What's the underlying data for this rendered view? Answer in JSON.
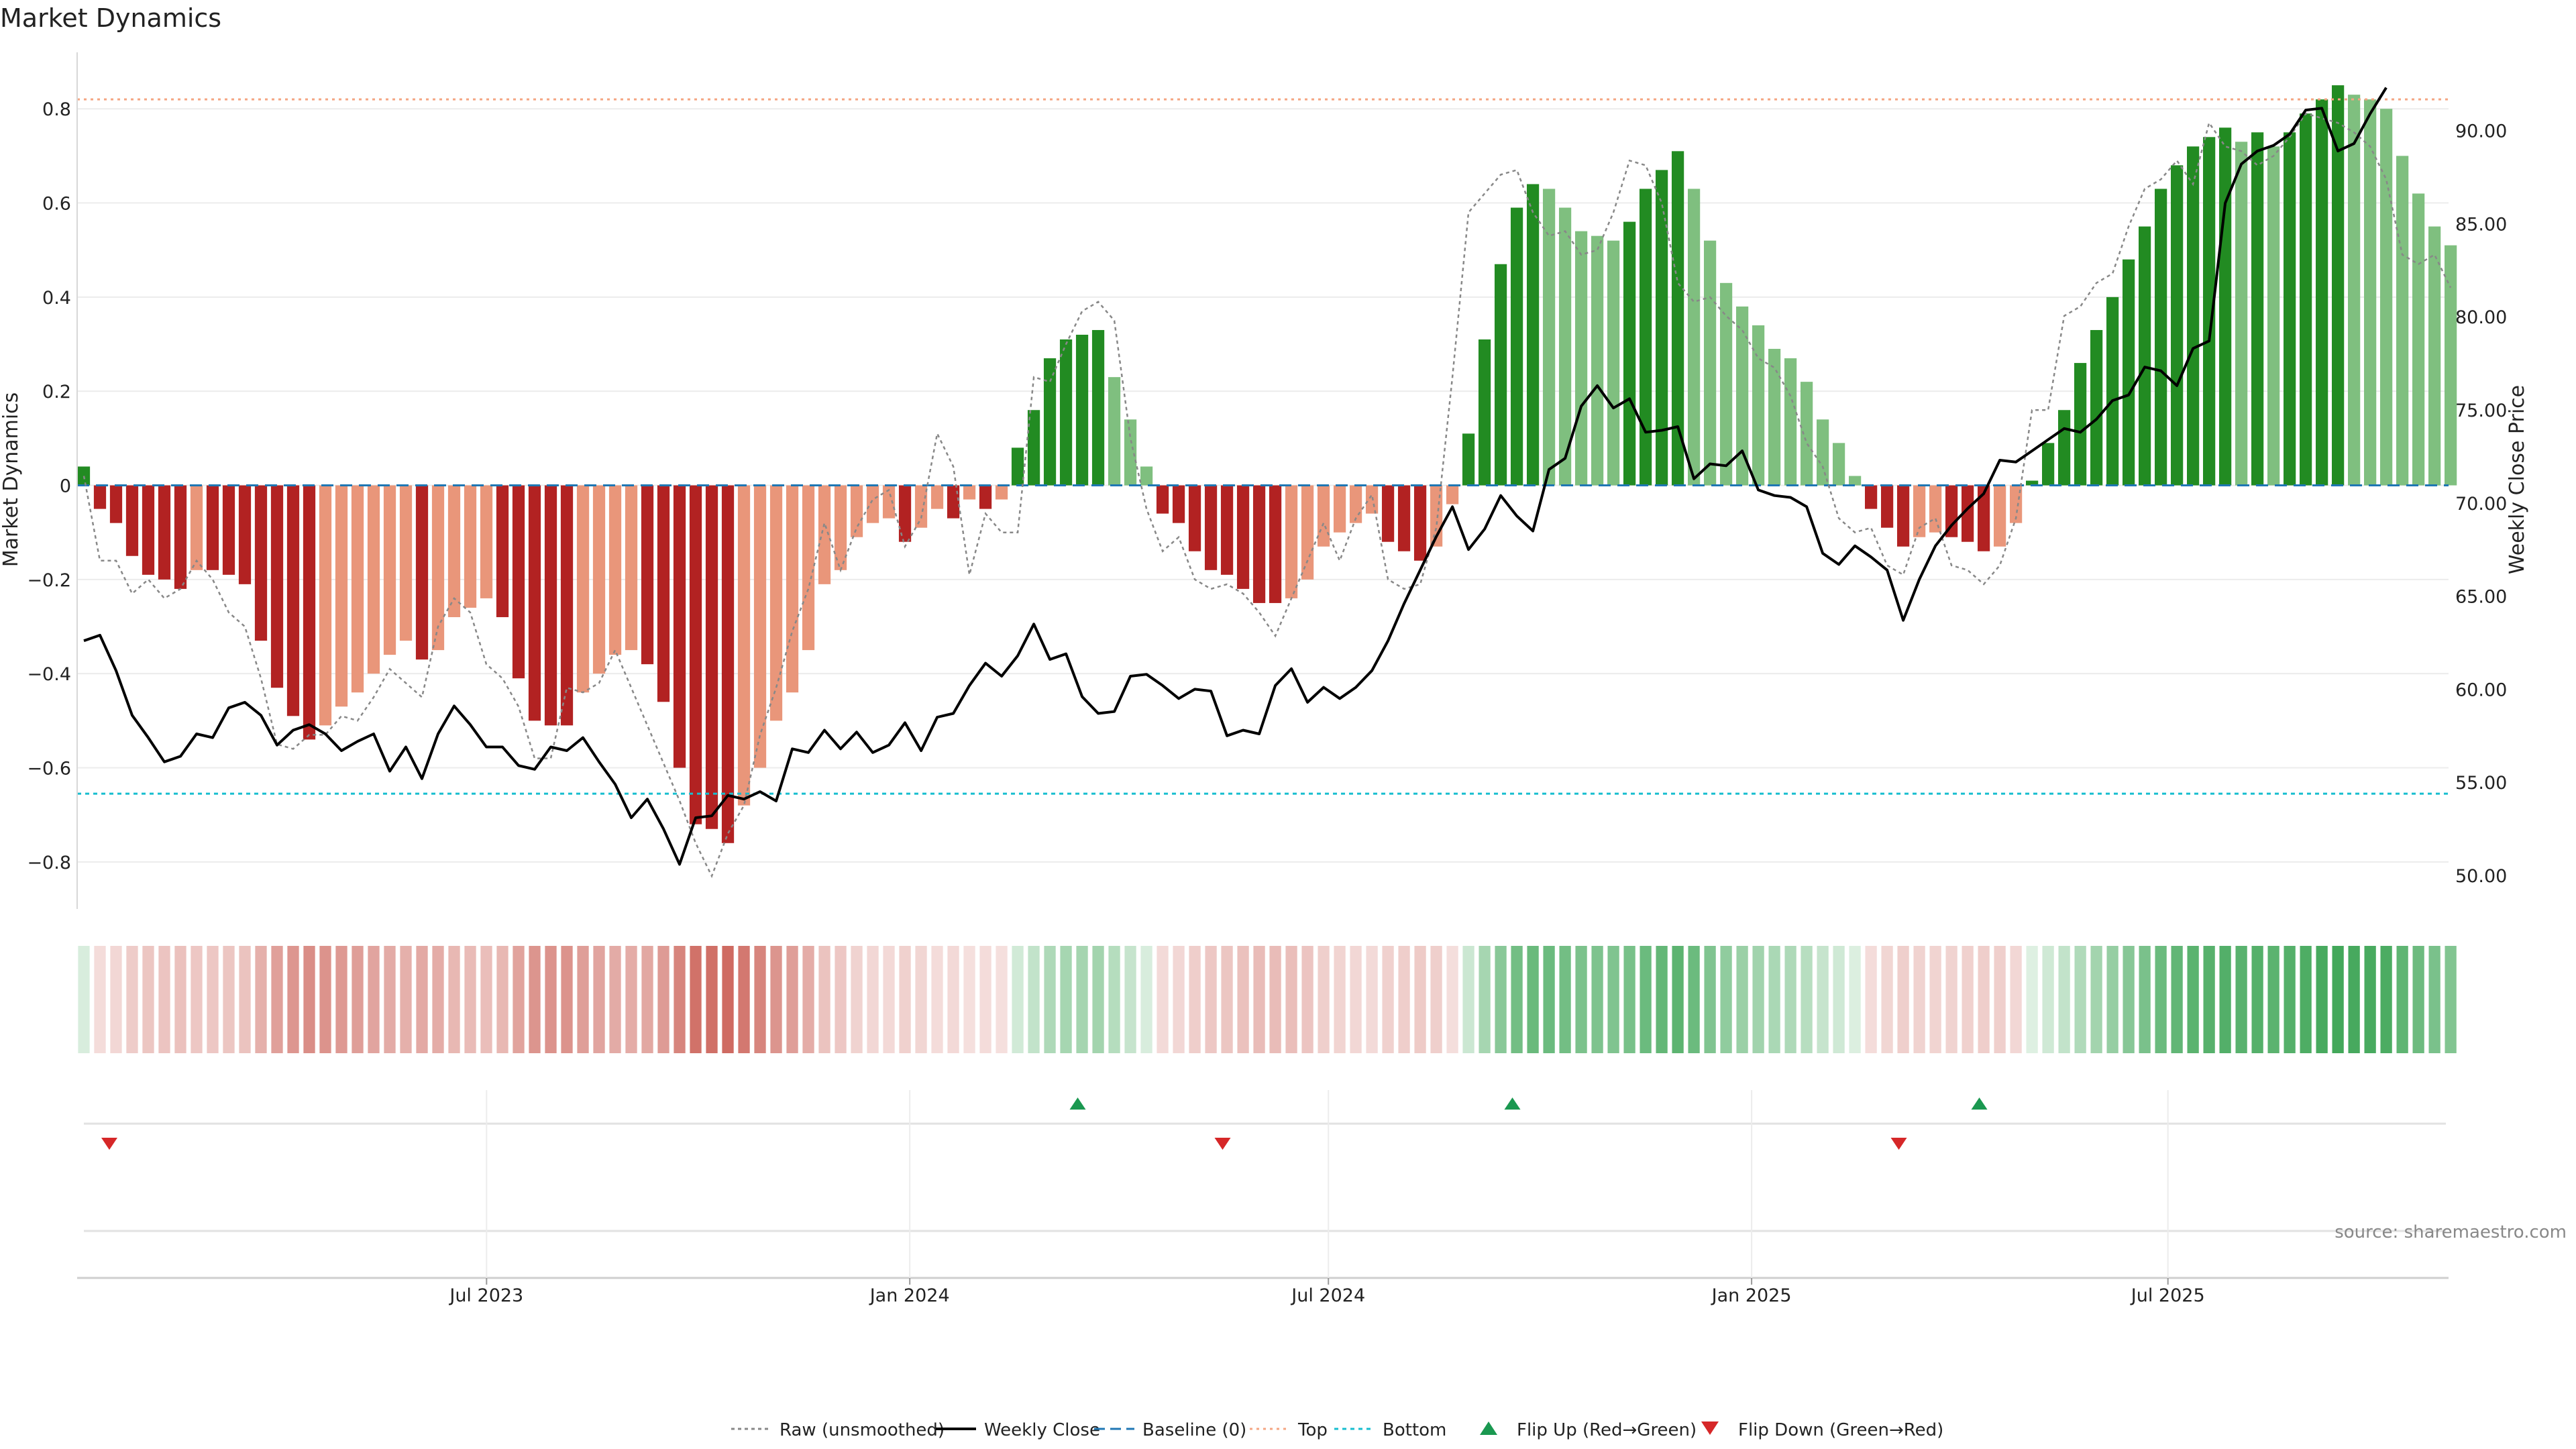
{
  "chart_data": {
    "title": "Market Dynamics",
    "type": "bar",
    "x_axis": {
      "start": "2023-01-04",
      "end": "2025-10-31",
      "ticks": [
        {
          "date": "2023-07-01",
          "label": "Jul 2023"
        },
        {
          "date": "2024-01-01",
          "label": "Jan 2024"
        },
        {
          "date": "2024-07-01",
          "label": "Jul 2024"
        },
        {
          "date": "2025-01-01",
          "label": "Jan 2025"
        },
        {
          "date": "2025-07-01",
          "label": "Jul 2025"
        }
      ]
    },
    "y_left": {
      "label": "Market Dynamics",
      "ylim": [
        -0.9,
        0.92
      ],
      "ticks": [
        {
          "v": 0.8,
          "label": "0.8"
        },
        {
          "v": 0.6,
          "label": "0.6"
        },
        {
          "v": 0.4,
          "label": "0.4"
        },
        {
          "v": 0.2,
          "label": "0.2"
        },
        {
          "v": 0,
          "label": "0"
        },
        {
          "v": -0.2,
          "label": "−0.2"
        },
        {
          "v": -0.4,
          "label": "−0.4"
        },
        {
          "v": -0.6,
          "label": "−0.6"
        },
        {
          "v": -0.8,
          "label": "−0.8"
        }
      ]
    },
    "y_right": {
      "label": "Weekly Close Price",
      "ylim": [
        48.2,
        94.2
      ],
      "ticks": [
        {
          "v": 90,
          "label": "90.00"
        },
        {
          "v": 85,
          "label": "85.00"
        },
        {
          "v": 80,
          "label": "80.00"
        },
        {
          "v": 75,
          "label": "75.00"
        },
        {
          "v": 70,
          "label": "70.00"
        },
        {
          "v": 65,
          "label": "65.00"
        },
        {
          "v": 60,
          "label": "60.00"
        },
        {
          "v": 55,
          "label": "55.00"
        },
        {
          "v": 50,
          "label": "50.00"
        }
      ]
    },
    "reference_lines": {
      "top": 0.82,
      "bottom": -0.655,
      "baseline": 0
    },
    "series": [
      {
        "name": "Market Dynamics (smoothed)",
        "type": "bar",
        "values": [
          0.04,
          -0.05,
          -0.08,
          -0.15,
          -0.19,
          -0.2,
          -0.22,
          -0.18,
          -0.18,
          -0.19,
          -0.21,
          -0.33,
          -0.43,
          -0.49,
          -0.54,
          -0.51,
          -0.47,
          -0.44,
          -0.4,
          -0.36,
          -0.33,
          -0.37,
          -0.35,
          -0.28,
          -0.26,
          -0.24,
          -0.28,
          -0.41,
          -0.5,
          -0.51,
          -0.51,
          -0.44,
          -0.4,
          -0.36,
          -0.35,
          -0.38,
          -0.46,
          -0.6,
          -0.72,
          -0.73,
          -0.76,
          -0.68,
          -0.6,
          -0.5,
          -0.44,
          -0.35,
          -0.21,
          -0.18,
          -0.11,
          -0.08,
          -0.07,
          -0.12,
          -0.09,
          -0.05,
          -0.07,
          -0.03,
          -0.05,
          -0.03,
          0.08,
          0.16,
          0.27,
          0.31,
          0.32,
          0.33,
          0.23,
          0.14,
          0.04,
          -0.06,
          -0.08,
          -0.14,
          -0.18,
          -0.19,
          -0.22,
          -0.25,
          -0.25,
          -0.24,
          -0.2,
          -0.13,
          -0.1,
          -0.08,
          -0.06,
          -0.12,
          -0.14,
          -0.16,
          -0.13,
          -0.04,
          0.11,
          0.31,
          0.47,
          0.59,
          0.64,
          0.63,
          0.59,
          0.54,
          0.53,
          0.52,
          0.56,
          0.63,
          0.67,
          0.71,
          0.63,
          0.52,
          0.43,
          0.38,
          0.34,
          0.29,
          0.27,
          0.22,
          0.14,
          0.09,
          0.02,
          -0.05,
          -0.09,
          -0.13,
          -0.11,
          -0.1,
          -0.11,
          -0.12,
          -0.14,
          -0.13,
          -0.08,
          0.01,
          0.09,
          0.16,
          0.26,
          0.33,
          0.4,
          0.48,
          0.55,
          0.63,
          0.68,
          0.72,
          0.74,
          0.76,
          0.73,
          0.75,
          0.72,
          0.75,
          0.79,
          0.82,
          0.85,
          0.83,
          0.82,
          0.8,
          0.7,
          0.62,
          0.55,
          0.51
        ]
      },
      {
        "name": "Raw (unsmoothed)",
        "type": "line",
        "values": [
          0.02,
          -0.16,
          -0.16,
          -0.23,
          -0.2,
          -0.24,
          -0.22,
          -0.16,
          -0.2,
          -0.27,
          -0.3,
          -0.41,
          -0.55,
          -0.56,
          -0.53,
          -0.53,
          -0.49,
          -0.5,
          -0.45,
          -0.39,
          -0.42,
          -0.45,
          -0.3,
          -0.24,
          -0.27,
          -0.38,
          -0.41,
          -0.47,
          -0.58,
          -0.58,
          -0.43,
          -0.44,
          -0.42,
          -0.35,
          -0.43,
          -0.51,
          -0.59,
          -0.67,
          -0.76,
          -0.83,
          -0.74,
          -0.68,
          -0.53,
          -0.43,
          -0.31,
          -0.22,
          -0.08,
          -0.18,
          -0.09,
          -0.03,
          -0.01,
          -0.13,
          -0.07,
          0.11,
          0.04,
          -0.19,
          -0.06,
          -0.1,
          -0.1,
          0.23,
          0.22,
          0.3,
          0.37,
          0.39,
          0.35,
          0.1,
          -0.05,
          -0.14,
          -0.11,
          -0.2,
          -0.22,
          -0.21,
          -0.23,
          -0.27,
          -0.32,
          -0.24,
          -0.16,
          -0.08,
          -0.16,
          -0.07,
          -0.02,
          -0.2,
          -0.22,
          -0.21,
          -0.09,
          0.23,
          0.58,
          0.62,
          0.66,
          0.67,
          0.58,
          0.53,
          0.54,
          0.49,
          0.5,
          0.58,
          0.69,
          0.68,
          0.6,
          0.43,
          0.39,
          0.4,
          0.36,
          0.33,
          0.27,
          0.25,
          0.19,
          0.09,
          0.04,
          -0.07,
          -0.1,
          -0.09,
          -0.17,
          -0.19,
          -0.09,
          -0.07,
          -0.17,
          -0.18,
          -0.21,
          -0.17,
          -0.07,
          0.16,
          0.16,
          0.36,
          0.38,
          0.43,
          0.45,
          0.55,
          0.63,
          0.65,
          0.69,
          0.64,
          0.77,
          0.72,
          0.71,
          0.68,
          0.7,
          0.74,
          0.79,
          0.78,
          0.77,
          0.75,
          0.72,
          0.65,
          0.49,
          0.47,
          0.49,
          0.42
        ]
      },
      {
        "name": "Weekly Close",
        "type": "line",
        "axis": "right",
        "values": [
          62.6,
          62.9,
          61.0,
          58.6,
          57.4,
          56.1,
          56.4,
          57.6,
          57.4,
          59.0,
          59.3,
          58.6,
          57.0,
          57.8,
          58.1,
          57.6,
          56.7,
          57.2,
          57.6,
          55.6,
          56.9,
          55.2,
          57.6,
          59.1,
          58.1,
          56.9,
          56.9,
          55.9,
          55.7,
          56.9,
          56.7,
          57.4,
          56.1,
          54.9,
          53.1,
          54.1,
          52.5,
          50.6,
          53.1,
          53.2,
          54.3,
          54.1,
          54.5,
          54.0,
          56.8,
          56.6,
          57.8,
          56.8,
          57.7,
          56.6,
          57.0,
          58.2,
          56.7,
          58.5,
          58.7,
          60.2,
          61.4,
          60.7,
          61.8,
          63.5,
          61.6,
          61.9,
          59.6,
          58.7,
          58.8,
          60.7,
          60.8,
          60.2,
          59.5,
          60.0,
          59.9,
          57.5,
          57.8,
          57.6,
          60.2,
          61.1,
          59.3,
          60.1,
          59.5,
          60.1,
          61.0,
          62.6,
          64.6,
          66.4,
          68.2,
          69.8,
          67.5,
          68.6,
          70.4,
          69.3,
          68.5,
          71.8,
          72.4,
          75.2,
          76.3,
          75.1,
          75.6,
          73.8,
          73.9,
          74.1,
          71.3,
          72.1,
          72.0,
          72.8,
          70.7,
          70.4,
          70.3,
          69.8,
          67.3,
          66.7,
          67.7,
          67.1,
          66.4,
          63.7,
          65.9,
          67.7,
          68.8,
          69.7,
          70.5,
          72.3,
          72.2,
          72.8,
          73.4,
          74.0,
          73.8,
          74.5,
          75.5,
          75.8,
          77.3,
          77.1,
          76.3,
          78.3,
          78.7,
          86.1,
          88.2,
          88.9,
          89.2,
          89.8,
          91.1,
          91.2,
          88.9,
          89.3,
          90.9,
          92.3
        ]
      }
    ],
    "heat_strip": {
      "description": "color intensity follows the smoothed Market Dynamics value per week"
    },
    "flips": {
      "up": [
        {
          "date": "2024-03-14",
          "label": "Flip Up (Red→Green)"
        },
        {
          "date": "2024-09-19",
          "label": "Flip Up (Red→Green)"
        },
        {
          "date": "2025-04-10",
          "label": "Flip Up (Red→Green)"
        }
      ],
      "down": [
        {
          "date": "2023-01-18",
          "label": "Flip Down (Green→Red)"
        },
        {
          "date": "2024-05-16",
          "label": "Flip Down (Green→Red)"
        },
        {
          "date": "2025-03-06",
          "label": "Flip Down (Green→Red)"
        }
      ]
    },
    "legend": {
      "placement": "bottom-center",
      "entries": [
        {
          "key": "raw",
          "label": "Raw (unsmoothed)"
        },
        {
          "key": "close",
          "label": "Weekly Close"
        },
        {
          "key": "baseline",
          "label": "Baseline (0)"
        },
        {
          "key": "top",
          "label": "Top"
        },
        {
          "key": "bottom",
          "label": "Bottom"
        },
        {
          "key": "flipup",
          "label": "Flip Up (Red→Green)"
        },
        {
          "key": "flipdown",
          "label": "Flip Down (Green→Red)"
        }
      ]
    },
    "source_note": "source: sharemaestro.com"
  },
  "colors": {
    "green_strong": "#228B22",
    "green_light": "#7fbf7f",
    "red_strong": "#b22222",
    "red_light": "#e9967a",
    "close_line": "#000000",
    "raw_line": "#888888",
    "baseline": "#1f77b4",
    "top": "#f4a582",
    "bottom": "#17becf",
    "flip_up": "#1a9850",
    "flip_down": "#d62728"
  }
}
